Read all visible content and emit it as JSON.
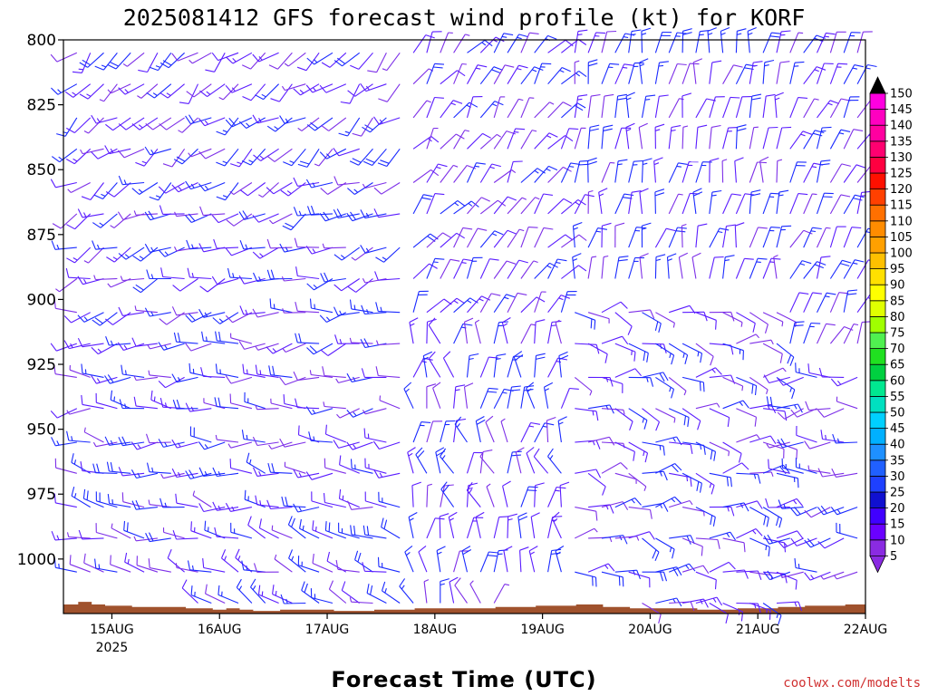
{
  "chart_data": {
    "type": "wind-barb time-height profile",
    "title": "2025081412 GFS forecast wind profile (kt) for KORF",
    "xlabel": "Forecast Time (UTC)",
    "ylabel": "",
    "x_ticks": [
      {
        "label": "15AUG",
        "day": 0,
        "sub": "2025"
      },
      {
        "label": "16AUG",
        "day": 1
      },
      {
        "label": "17AUG",
        "day": 2
      },
      {
        "label": "18AUG",
        "day": 3
      },
      {
        "label": "19AUG",
        "day": 4
      },
      {
        "label": "20AUG",
        "day": 5
      },
      {
        "label": "21AUG",
        "day": 6
      },
      {
        "label": "22AUG",
        "day": 7
      }
    ],
    "xlim_days": [
      -0.45,
      7.0
    ],
    "pressure_ticks": [
      800,
      825,
      850,
      875,
      900,
      925,
      950,
      975,
      1000
    ],
    "ylim_hpa": [
      800,
      1021
    ],
    "barb_levels_hpa": [
      805,
      817,
      830,
      842,
      855,
      867,
      880,
      892,
      905,
      917,
      930,
      942,
      955,
      967,
      980,
      992,
      1005,
      1017
    ],
    "time_step_hours": 3,
    "first_time_day": -0.5,
    "colorbar": {
      "unit": "kt",
      "labels": [
        5,
        10,
        15,
        20,
        25,
        30,
        35,
        40,
        45,
        50,
        55,
        60,
        65,
        70,
        75,
        80,
        85,
        90,
        95,
        100,
        105,
        110,
        115,
        120,
        125,
        130,
        135,
        140,
        145,
        150
      ],
      "colors": [
        "#8a2be2",
        "#6a00ff",
        "#4000ff",
        "#1010d0",
        "#1e40ff",
        "#2060ff",
        "#1e90ff",
        "#00b0ff",
        "#00d0ff",
        "#00e0c0",
        "#00e890",
        "#00d040",
        "#20e020",
        "#50f050",
        "#a0ff00",
        "#e0ff00",
        "#ffff00",
        "#ffe000",
        "#ffc000",
        "#ffa000",
        "#ff8c00",
        "#ff7000",
        "#ff4000",
        "#ff1000",
        "#ff0040",
        "#ff0070",
        "#ff00a0",
        "#ff00c0",
        "#ff00e0",
        "#000000"
      ]
    },
    "surface_pressure_hpa": [
      1017.5,
      1017.5,
      1016.5,
      1017.5,
      1018,
      1018,
      1018.5,
      1018.5,
      1018.5,
      1018.5,
      1019,
      1019,
      1019.5,
      1019,
      1019.5,
      1020,
      1020,
      1019.5,
      1019.5,
      1019.5,
      1019.5,
      1020,
      1020,
      1020,
      1019.5,
      1019.5,
      1019.5,
      1019,
      1019,
      1019,
      1019,
      1019,
      1019,
      1018.5,
      1018.5,
      1018.5,
      1018,
      1018,
      1018,
      1017.5,
      1017.5,
      1018.5,
      1018.5,
      1019,
      1019,
      1019,
      1019,
      1019,
      1019.5,
      1019.5,
      1019.5,
      1019,
      1019,
      1019,
      1018.5,
      1018.5,
      1018,
      1018,
      1018,
      1017.5,
      1017.5,
      1017,
      1016.5,
      1016,
      1016,
      1015.5,
      1015.5,
      1015,
      1015,
      1015,
      1015,
      1016,
      1016.5,
      1017,
      1017,
      1017.5,
      1017.5,
      1017.5,
      1017.5,
      1017.5,
      1017.5
    ],
    "annotation": "coolwx.com/modelts"
  }
}
